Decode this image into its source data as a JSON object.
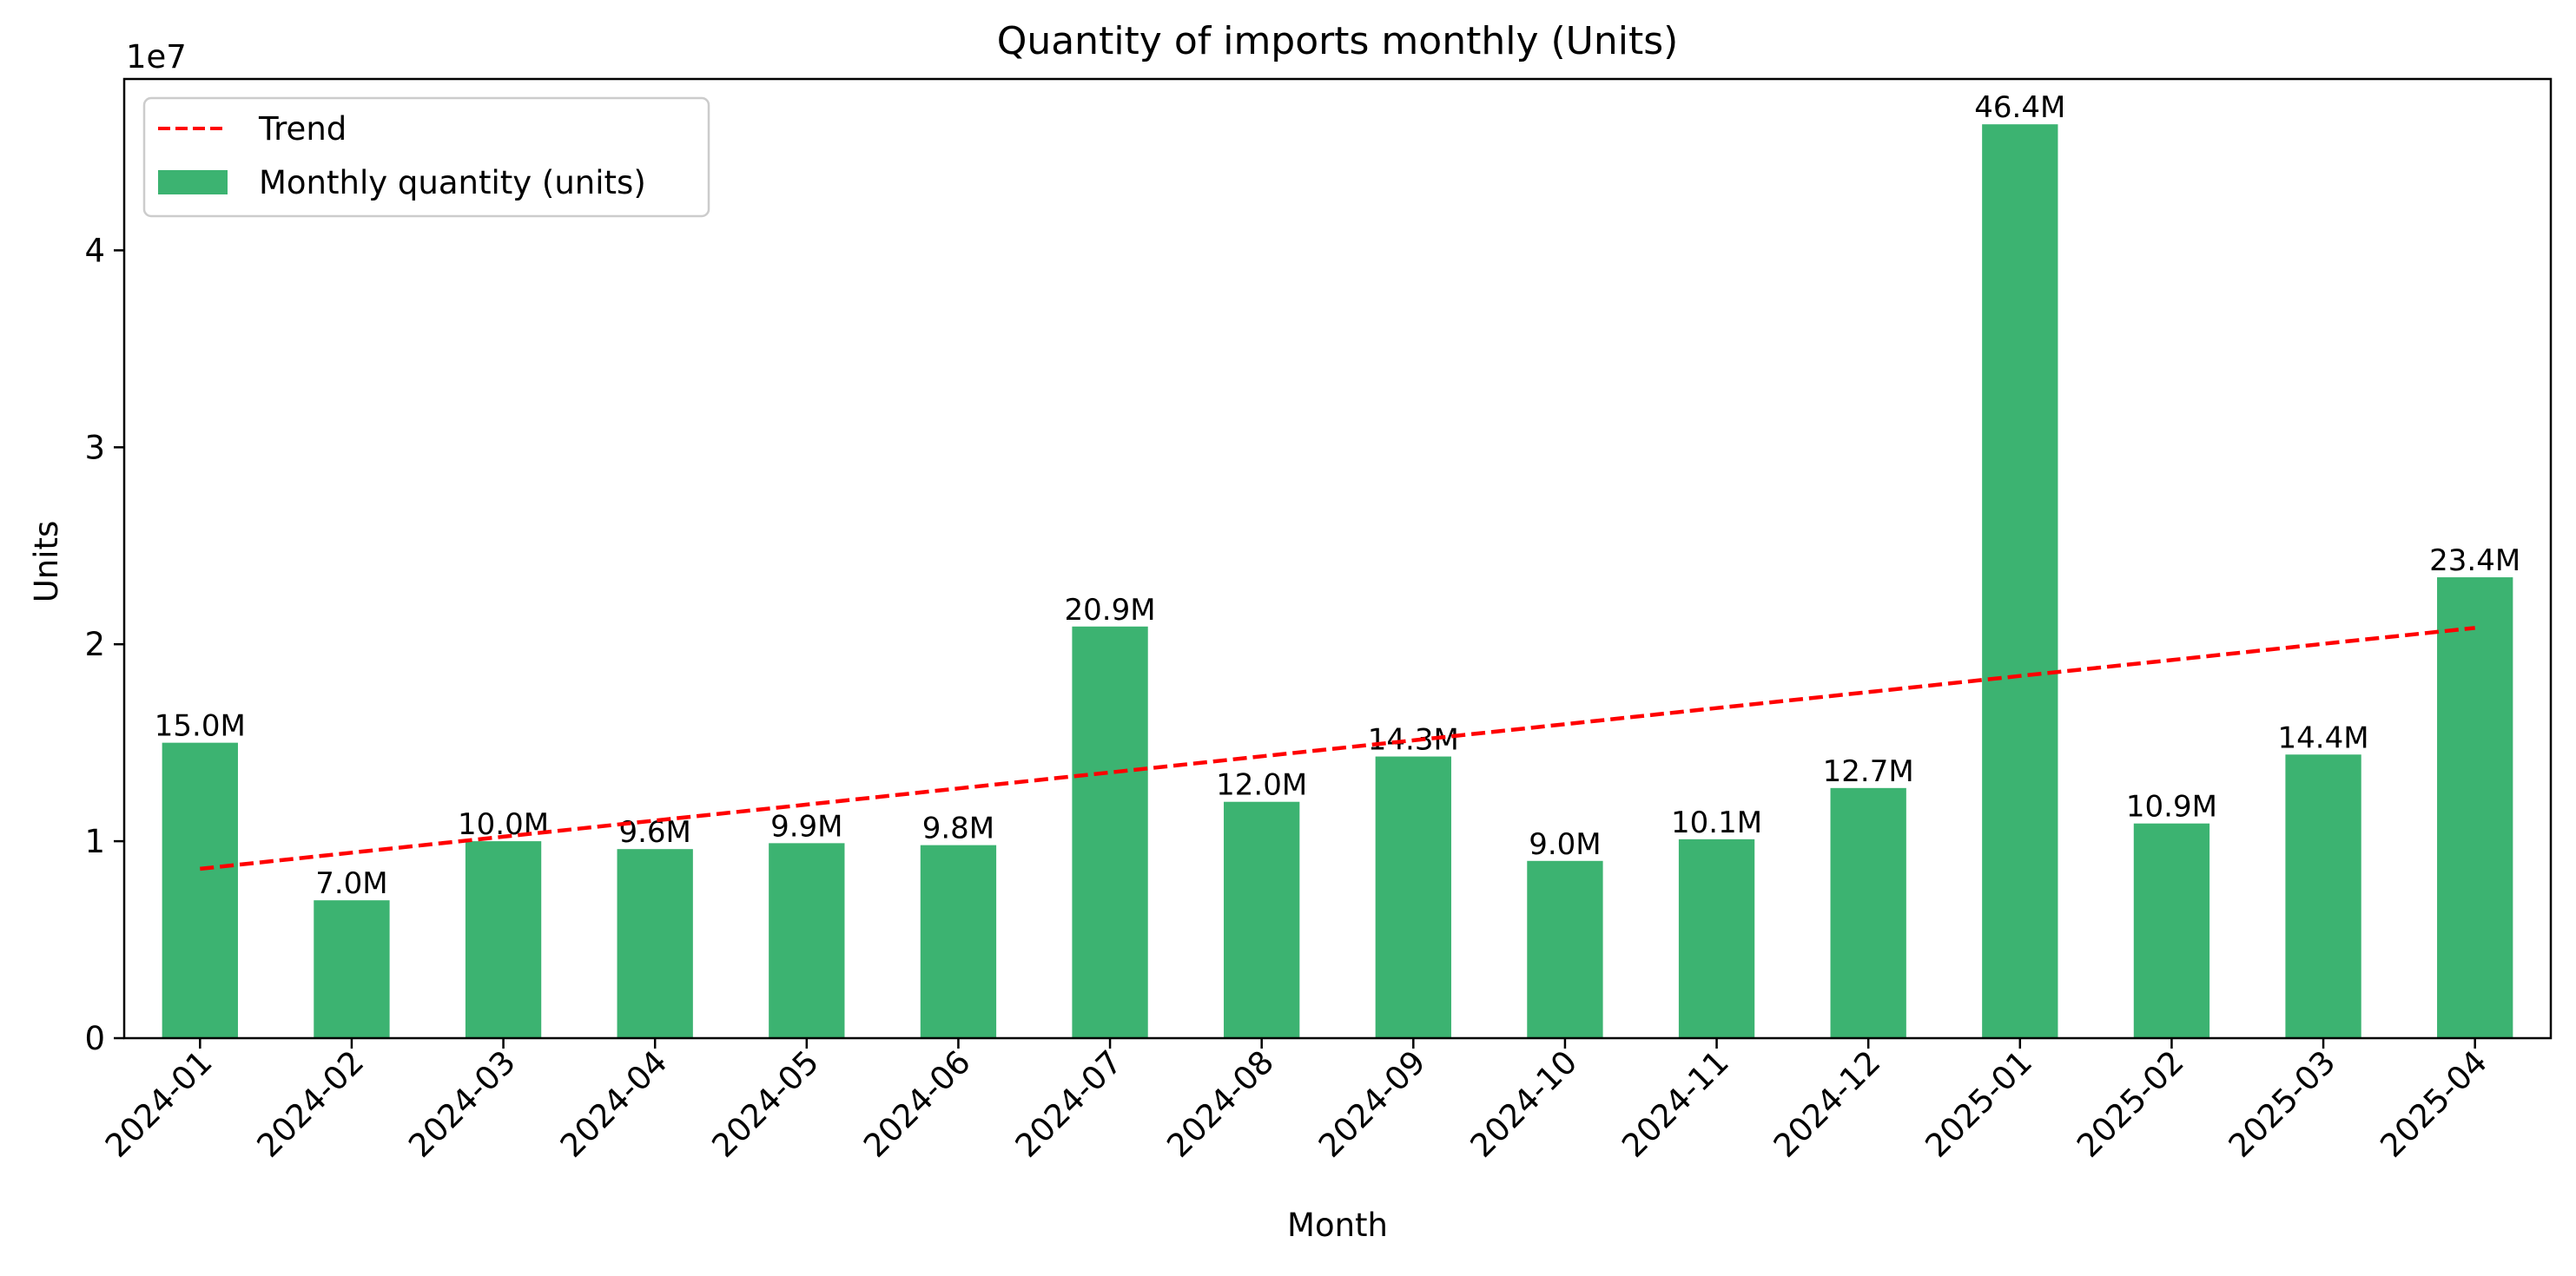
{
  "chart_data": {
    "type": "bar",
    "title": "Quantity of imports monthly (Units)",
    "xlabel": "Month",
    "ylabel": "Units",
    "y_offset_label": "1e7",
    "ylim": [
      0,
      48700000
    ],
    "yticks": [
      0,
      10000000,
      20000000,
      30000000,
      40000000
    ],
    "ytick_labels": [
      "0",
      "1",
      "2",
      "3",
      "4"
    ],
    "categories": [
      "2024-01",
      "2024-02",
      "2024-03",
      "2024-04",
      "2024-05",
      "2024-06",
      "2024-07",
      "2024-08",
      "2024-09",
      "2024-10",
      "2024-11",
      "2024-12",
      "2025-01",
      "2025-02",
      "2025-03",
      "2025-04"
    ],
    "series": [
      {
        "name": "Monthly quantity (units)",
        "kind": "bar",
        "color": "#3cb371",
        "values": [
          15000000,
          7000000,
          10000000,
          9600000,
          9900000,
          9800000,
          20900000,
          12000000,
          14300000,
          9000000,
          10100000,
          12700000,
          46400000,
          10900000,
          14400000,
          23400000
        ],
        "labels": [
          "15.0M",
          "7.0M",
          "10.0M",
          "9.6M",
          "9.9M",
          "9.8M",
          "20.9M",
          "12.0M",
          "14.3M",
          "9.0M",
          "10.1M",
          "12.7M",
          "46.4M",
          "10.9M",
          "14.4M",
          "23.4M"
        ]
      },
      {
        "name": "Trend",
        "kind": "line",
        "style": "dashed",
        "color": "#ff0000",
        "values": [
          8600000,
          9420000,
          10230000,
          11050000,
          11860000,
          12680000,
          13490000,
          14310000,
          15120000,
          15940000,
          16760000,
          17570000,
          18390000,
          19200000,
          20020000,
          20830000
        ]
      }
    ],
    "legend_position": "top-left",
    "grid": false
  }
}
